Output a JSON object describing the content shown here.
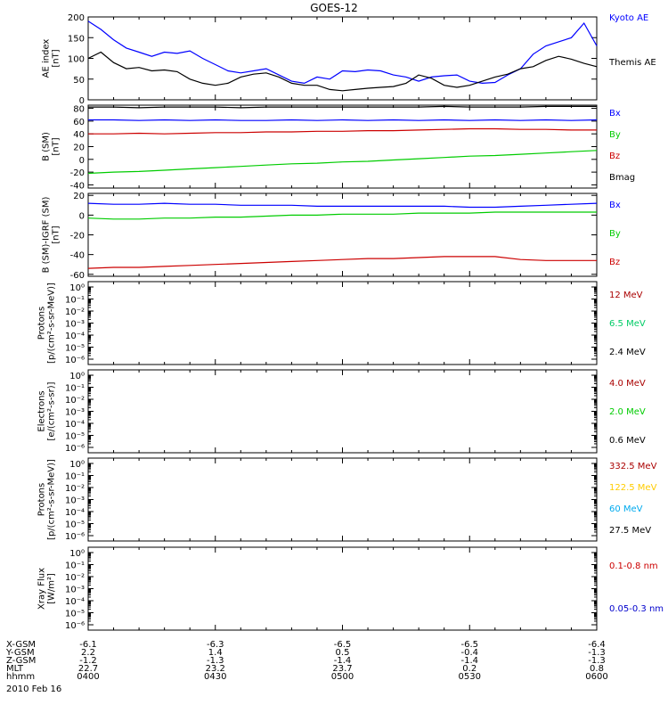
{
  "title": "GOES-12",
  "footer": {
    "row_labels": [
      "X-GSM",
      "Y-GSM",
      "Z-GSM",
      "MLT",
      "hhmm"
    ],
    "columns": [
      [
        "-6.1",
        "2.2",
        "-1.2",
        "22.7",
        "0400"
      ],
      [
        "-6.3",
        "1.4",
        "-1.3",
        "23.2",
        "0430"
      ],
      [
        "-6.5",
        "0.5",
        "-1.4",
        "23.7",
        "0500"
      ],
      [
        "-6.5",
        "-0.4",
        "-1.4",
        "0.2",
        "0530"
      ],
      [
        "-6.4",
        "-1.3",
        "-1.3",
        "0.8",
        "0600"
      ]
    ],
    "date": "2010 Feb 16"
  },
  "colors": {
    "blue": "#0000ff",
    "black": "#000000",
    "red": "#cc0000",
    "green": "#00cc00",
    "yellow": "#ffcc00",
    "cyan": "#00aaee",
    "darkred": "#aa0000",
    "darkblue": "#0000cc"
  },
  "chart_data": [
    {
      "type": "line",
      "ylabel_lines": [
        "AE index",
        "[nT]"
      ],
      "ylim": [
        0,
        200
      ],
      "yticks": [
        0,
        50,
        100,
        150,
        200
      ],
      "yticklabels": [
        "0",
        "50",
        "100",
        "150",
        "200"
      ],
      "x_hours": [
        4.0,
        4.05,
        4.1,
        4.15,
        4.2,
        4.25,
        4.3,
        4.35,
        4.4,
        4.45,
        4.5,
        4.55,
        4.6,
        4.65,
        4.7,
        4.75,
        4.8,
        4.85,
        4.9,
        4.95,
        5.0,
        5.05,
        5.1,
        5.15,
        5.2,
        5.25,
        5.3,
        5.35,
        5.4,
        5.45,
        5.5,
        5.55,
        5.6,
        5.65,
        5.7,
        5.75,
        5.8,
        5.85,
        5.9,
        5.95,
        6.0
      ],
      "series": [
        {
          "name": "Kyoto AE",
          "color": "#0000ff",
          "values": [
            190,
            170,
            145,
            125,
            115,
            105,
            115,
            112,
            118,
            100,
            85,
            70,
            65,
            70,
            75,
            60,
            45,
            40,
            55,
            50,
            70,
            68,
            72,
            70,
            60,
            55,
            45,
            55,
            58,
            60,
            45,
            40,
            42,
            60,
            75,
            110,
            130,
            140,
            150,
            185,
            130
          ]
        },
        {
          "name": "Themis AE",
          "color": "#000000",
          "values": [
            100,
            115,
            90,
            75,
            78,
            70,
            72,
            68,
            50,
            40,
            35,
            40,
            55,
            62,
            65,
            55,
            40,
            35,
            35,
            25,
            22,
            25,
            28,
            30,
            32,
            40,
            60,
            52,
            35,
            30,
            35,
            45,
            55,
            62,
            75,
            80,
            95,
            105,
            98,
            88,
            80
          ]
        }
      ],
      "legend_offsets": [
        0,
        50
      ]
    },
    {
      "type": "line",
      "ylabel_lines": [
        "B (SM)",
        "[nT]"
      ],
      "ylim": [
        -45,
        85
      ],
      "yticks": [
        -40,
        -20,
        0,
        20,
        40,
        60,
        80
      ],
      "yticklabels": [
        "-40",
        "-20",
        "0",
        "20",
        "40",
        "60",
        "80"
      ],
      "x_hours": [
        4.0,
        4.1,
        4.2,
        4.3,
        4.4,
        4.5,
        4.6,
        4.7,
        4.8,
        4.9,
        5.0,
        5.1,
        5.2,
        5.3,
        5.4,
        5.5,
        5.6,
        5.7,
        5.8,
        5.9,
        6.0
      ],
      "series": [
        {
          "name": "Bx",
          "color": "#0000ff",
          "values": [
            62,
            62,
            61,
            62,
            61,
            62,
            61,
            61,
            62,
            61,
            62,
            61,
            62,
            61,
            62,
            61,
            62,
            61,
            62,
            61,
            62
          ]
        },
        {
          "name": "By",
          "color": "#00cc00",
          "values": [
            -22,
            -20,
            -19,
            -17,
            -15,
            -13,
            -11,
            -9,
            -7,
            -6,
            -4,
            -3,
            -1,
            1,
            3,
            5,
            6,
            8,
            10,
            12,
            14
          ]
        },
        {
          "name": "Bz",
          "color": "#cc0000",
          "values": [
            40,
            40,
            41,
            40,
            41,
            42,
            42,
            43,
            43,
            44,
            44,
            45,
            45,
            46,
            47,
            48,
            48,
            47,
            47,
            46,
            46
          ]
        },
        {
          "name": "Bmag",
          "color": "#000000",
          "values": [
            82,
            82,
            81,
            82,
            82,
            82,
            81,
            82,
            82,
            82,
            82,
            82,
            82,
            82,
            83,
            82,
            82,
            82,
            83,
            83,
            83
          ]
        }
      ],
      "legend_offsets": [
        8,
        32,
        56,
        80
      ]
    },
    {
      "type": "line",
      "ylabel_lines": [
        "B (SM)-IGRF (SM)",
        "[nT]"
      ],
      "ylim": [
        -62,
        22
      ],
      "yticks": [
        -60,
        -40,
        -20,
        0,
        20
      ],
      "yticklabels": [
        "-60",
        "-40",
        "-20",
        "0",
        "20"
      ],
      "x_hours": [
        4.0,
        4.1,
        4.2,
        4.3,
        4.4,
        4.5,
        4.6,
        4.7,
        4.8,
        4.9,
        5.0,
        5.1,
        5.2,
        5.3,
        5.4,
        5.5,
        5.6,
        5.7,
        5.8,
        5.9,
        6.0
      ],
      "series": [
        {
          "name": "Bx",
          "color": "#0000ff",
          "values": [
            12,
            11,
            11,
            12,
            11,
            11,
            10,
            10,
            10,
            9,
            9,
            9,
            9,
            9,
            9,
            8,
            8,
            9,
            10,
            11,
            12
          ]
        },
        {
          "name": "By",
          "color": "#00cc00",
          "values": [
            -3,
            -4,
            -4,
            -3,
            -3,
            -2,
            -2,
            -1,
            0,
            0,
            1,
            1,
            1,
            2,
            2,
            2,
            3,
            3,
            3,
            3,
            3
          ]
        },
        {
          "name": "Bz",
          "color": "#cc0000",
          "values": [
            -54,
            -53,
            -53,
            -52,
            -51,
            -50,
            -49,
            -48,
            -47,
            -46,
            -45,
            -44,
            -44,
            -43,
            -42,
            -42,
            -42,
            -45,
            -46,
            -46,
            -46
          ]
        }
      ],
      "legend_offsets": [
        12,
        44,
        76
      ]
    },
    {
      "type": "line",
      "ylabel_lines": [
        "Protons",
        "[p/(cm²-s-sr-MeV)]"
      ],
      "ylog": true,
      "yticklabels": [
        "10⁻⁶",
        "10⁻⁵",
        "10⁻⁴",
        "10⁻³",
        "10⁻²",
        "10⁻¹",
        "10⁰"
      ],
      "series": [
        {
          "name": "12 MeV",
          "color": "#aa0000"
        },
        {
          "name": "6.5 MeV",
          "color": "#00cc66"
        },
        {
          "name": "2.4 MeV",
          "color": "#000000"
        }
      ],
      "legend_offsets": [
        14,
        46,
        78
      ]
    },
    {
      "type": "line",
      "ylabel_lines": [
        "Electrons",
        "[e/(cm²-s-sr)]"
      ],
      "ylog": true,
      "yticklabels": [
        "10⁻⁶",
        "10⁻⁵",
        "10⁻⁴",
        "10⁻³",
        "10⁻²",
        "10⁻¹",
        "10⁰"
      ],
      "series": [
        {
          "name": "4.0 MeV",
          "color": "#aa0000"
        },
        {
          "name": "2.0 MeV",
          "color": "#00cc00"
        },
        {
          "name": "0.6 MeV",
          "color": "#000000"
        }
      ],
      "legend_offsets": [
        14,
        46,
        78
      ]
    },
    {
      "type": "line",
      "ylabel_lines": [
        "Protons",
        "[p/(cm²-s-sr-MeV)]"
      ],
      "ylog": true,
      "yticklabels": [
        "10⁻⁶",
        "10⁻⁵",
        "10⁻⁴",
        "10⁻³",
        "10⁻²",
        "10⁻¹",
        "10⁰"
      ],
      "series": [
        {
          "name": "332.5 MeV",
          "color": "#aa0000"
        },
        {
          "name": "122.5 MeV",
          "color": "#ffcc00"
        },
        {
          "name": "60 MeV",
          "color": "#00aaee"
        },
        {
          "name": "27.5 MeV",
          "color": "#000000"
        }
      ],
      "legend_offsets": [
        8,
        32,
        56,
        80
      ]
    },
    {
      "type": "line",
      "ylabel_lines": [
        "Xray Flux",
        "[W/m²]"
      ],
      "ylog": true,
      "yticklabels": [
        "10⁻⁶",
        "10⁻⁵",
        "10⁻⁴",
        "10⁻³",
        "10⁻²",
        "10⁻¹",
        "10⁰"
      ],
      "series": [
        {
          "name": "0.1-0.8 nm",
          "color": "#cc0000"
        },
        {
          "name": "0.05-0.3 nm",
          "color": "#0000cc"
        }
      ],
      "legend_offsets": [
        20,
        68
      ]
    }
  ]
}
